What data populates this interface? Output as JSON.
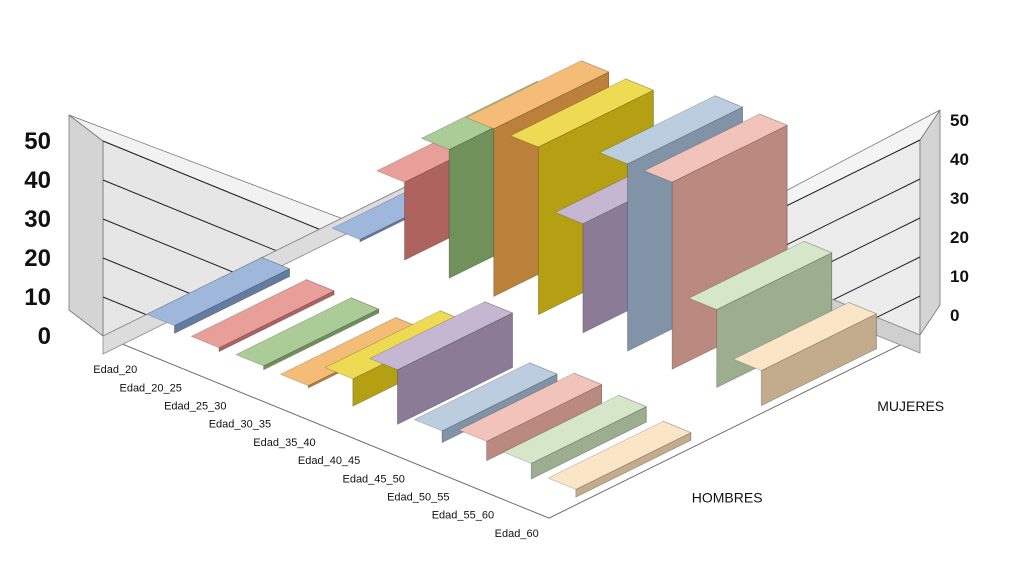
{
  "chart_data": {
    "type": "bar",
    "subtype": "3d-column",
    "categories": [
      "Edad_20",
      "Edad_20_25",
      "Edad_25_30",
      "Edad_30_35",
      "Edad_35_40",
      "Edad_40_45",
      "Edad_45_50",
      "Edad_50_55",
      "Edad_55_60",
      "Edad_60"
    ],
    "series": [
      {
        "name": "MUJERES",
        "values": [
          0,
          20,
          33,
          43,
          43,
          28,
          48,
          48,
          20,
          9
        ]
      },
      {
        "name": "HOMBRES",
        "values": [
          2,
          1,
          1,
          0,
          7,
          14,
          3,
          5,
          4,
          2
        ]
      }
    ],
    "ylim": [
      0,
      50
    ],
    "yticks": [
      0,
      10,
      20,
      30,
      40,
      50
    ],
    "grid": true,
    "category_colors": [
      "#7f9fcf",
      "#e07f78",
      "#8fba74",
      "#f0a54a",
      "#e8cd1a",
      "#b29ec1",
      "#a6bcd6",
      "#eeafa3",
      "#c8dfb7",
      "#fadcb4"
    ]
  }
}
